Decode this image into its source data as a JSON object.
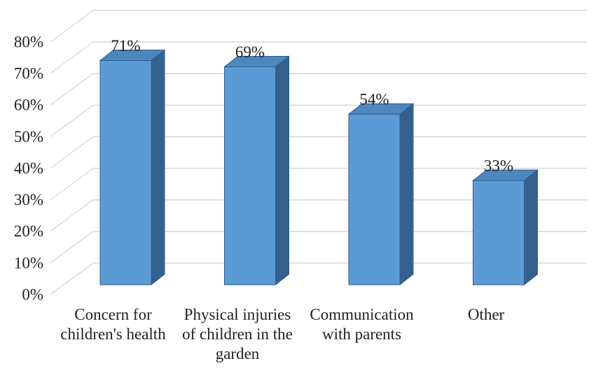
{
  "chart_data": {
    "type": "bar",
    "variant": "3d-column",
    "title": "",
    "xlabel": "",
    "ylabel": "",
    "categories": [
      "Concern for children's health",
      "Physical injuries of children in the garden",
      "Communication with parents",
      "Other"
    ],
    "category_lines": [
      [
        "Concern for",
        "children's health"
      ],
      [
        "Physical injuries",
        "of children in the",
        "garden"
      ],
      [
        "Communication",
        "with parents"
      ],
      [
        "Other"
      ]
    ],
    "values": [
      71,
      69,
      54,
      33
    ],
    "data_labels": [
      "71%",
      "69%",
      "54%",
      "33%"
    ],
    "ylim": [
      0,
      80
    ],
    "ytick_step": 10,
    "ytick_labels": [
      "0%",
      "10%",
      "20%",
      "30%",
      "40%",
      "50%",
      "60%",
      "70%",
      "80%"
    ],
    "grid": true,
    "legend": false,
    "colors": {
      "bar_front": "#5B9BD5",
      "bar_top": "#4C87BE",
      "bar_side": "#35618E",
      "bar_edge": "#2F5C8F",
      "gridline": "#D9D9D9",
      "text": "#1F1F1F",
      "background": "#FFFFFF"
    }
  }
}
